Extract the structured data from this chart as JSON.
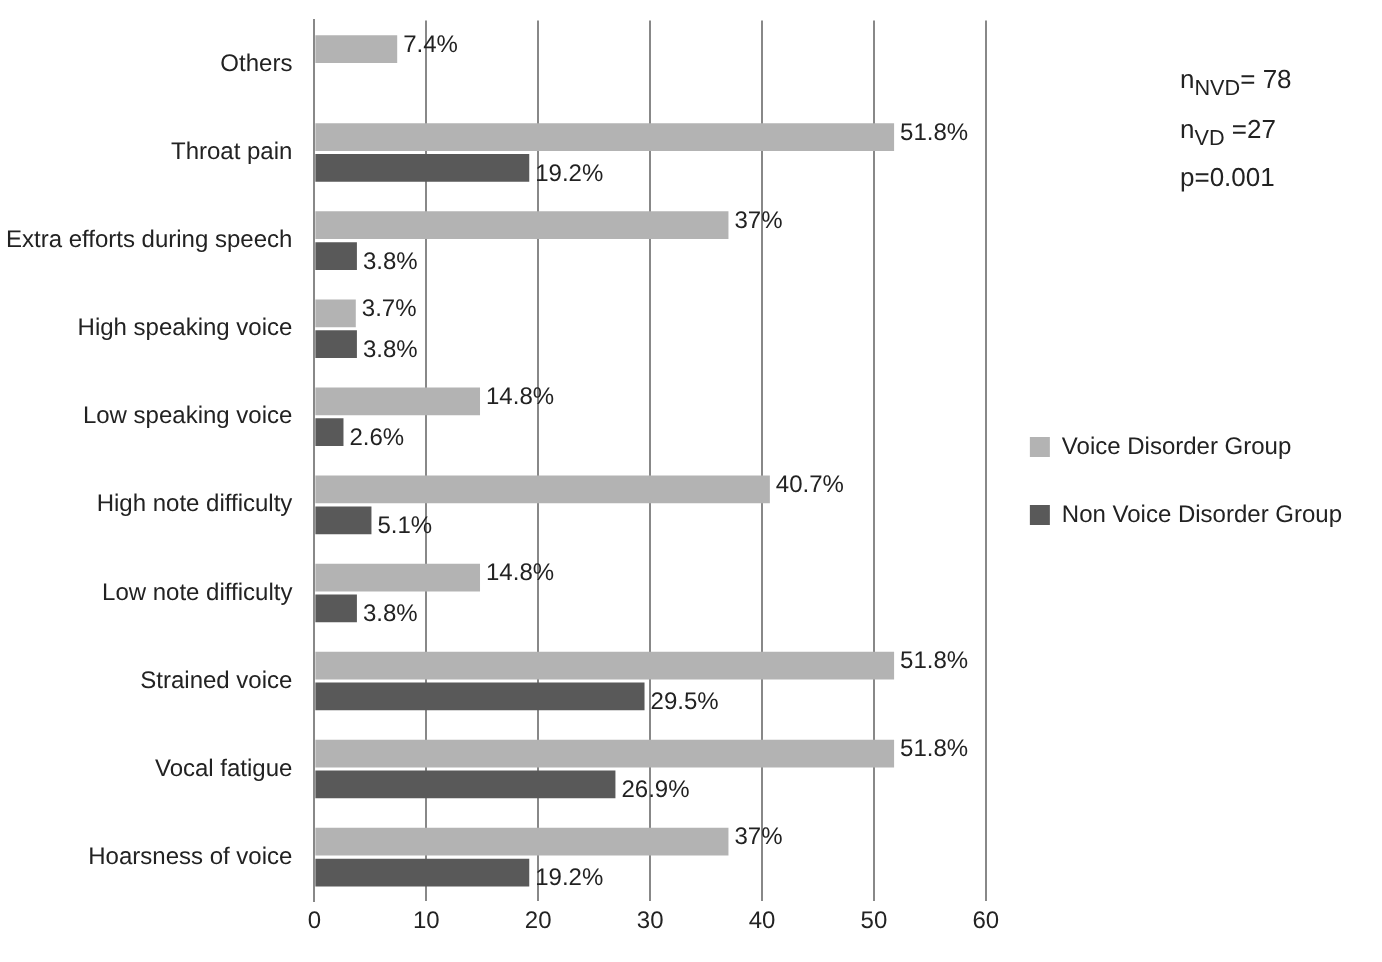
{
  "chart_data": {
    "type": "bar",
    "orientation": "horizontal",
    "categories": [
      "Others",
      "Throat pain",
      "Extra efforts during speech",
      "High speaking voice",
      "Low speaking voice",
      "High note difficulty",
      "Low note difficulty",
      "Strained voice",
      "Vocal fatigue",
      "Hoarsness of voice"
    ],
    "series": [
      {
        "name": "Voice Disorder Group",
        "color": "#b3b3b3",
        "values": [
          7.4,
          51.8,
          37,
          3.7,
          14.8,
          40.7,
          14.8,
          51.8,
          51.8,
          37
        ],
        "value_labels": [
          "7.4%",
          "51.8%",
          "37%",
          "3.7%",
          "14.8%",
          "40.7%",
          "14.8%",
          "51.8%",
          "51.8%",
          "37%"
        ]
      },
      {
        "name": "Non Voice Disorder Group",
        "color": "#595959",
        "values": [
          null,
          19.2,
          3.8,
          3.8,
          2.6,
          5.1,
          3.8,
          29.5,
          26.9,
          19.2
        ],
        "value_labels": [
          null,
          "19.2%",
          "3.8%",
          "3.8%",
          "2.6%",
          "5.1%",
          "3.8%",
          "29.5%",
          "26.9%",
          "19.2%"
        ]
      }
    ],
    "xlim": [
      0,
      60
    ],
    "xticks": [
      0,
      10,
      20,
      30,
      40,
      50,
      60
    ],
    "grid": "x",
    "legend": "right",
    "annotations": [
      "n$_{NVD}$= 78",
      "n$_{VD}$ =27",
      "p=0.001"
    ]
  }
}
